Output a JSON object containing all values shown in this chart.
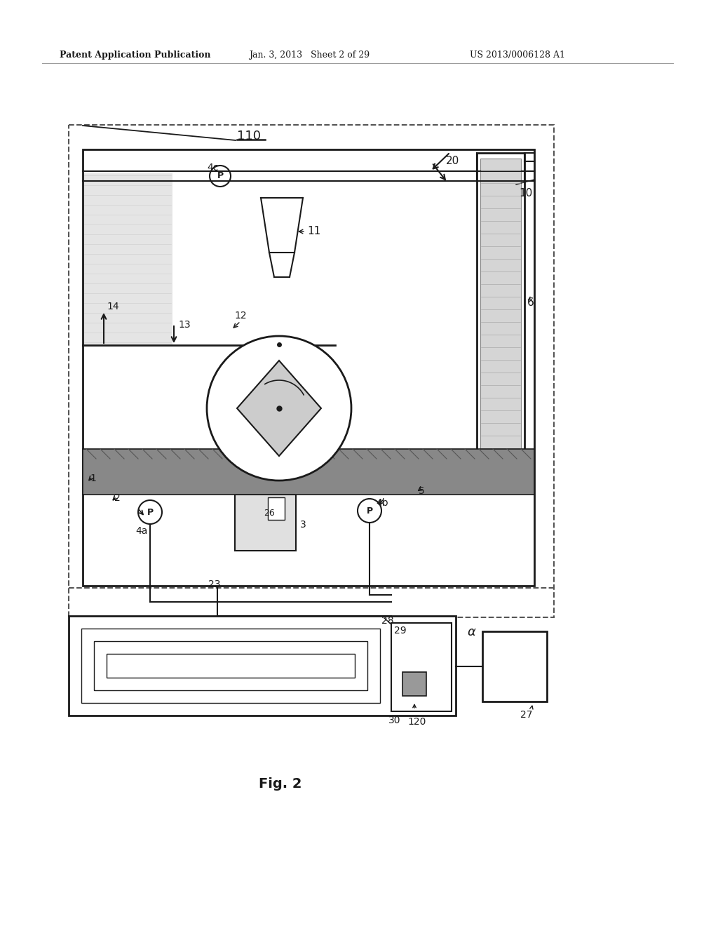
{
  "header_left": "Patent Application Publication",
  "header_mid": "Jan. 3, 2013   Sheet 2 of 29",
  "header_right": "US 2013/0006128 A1",
  "fig_label": "Fig. 2",
  "background": "#ffffff",
  "line_color": "#1a1a1a",
  "dashed_color": "#555555"
}
